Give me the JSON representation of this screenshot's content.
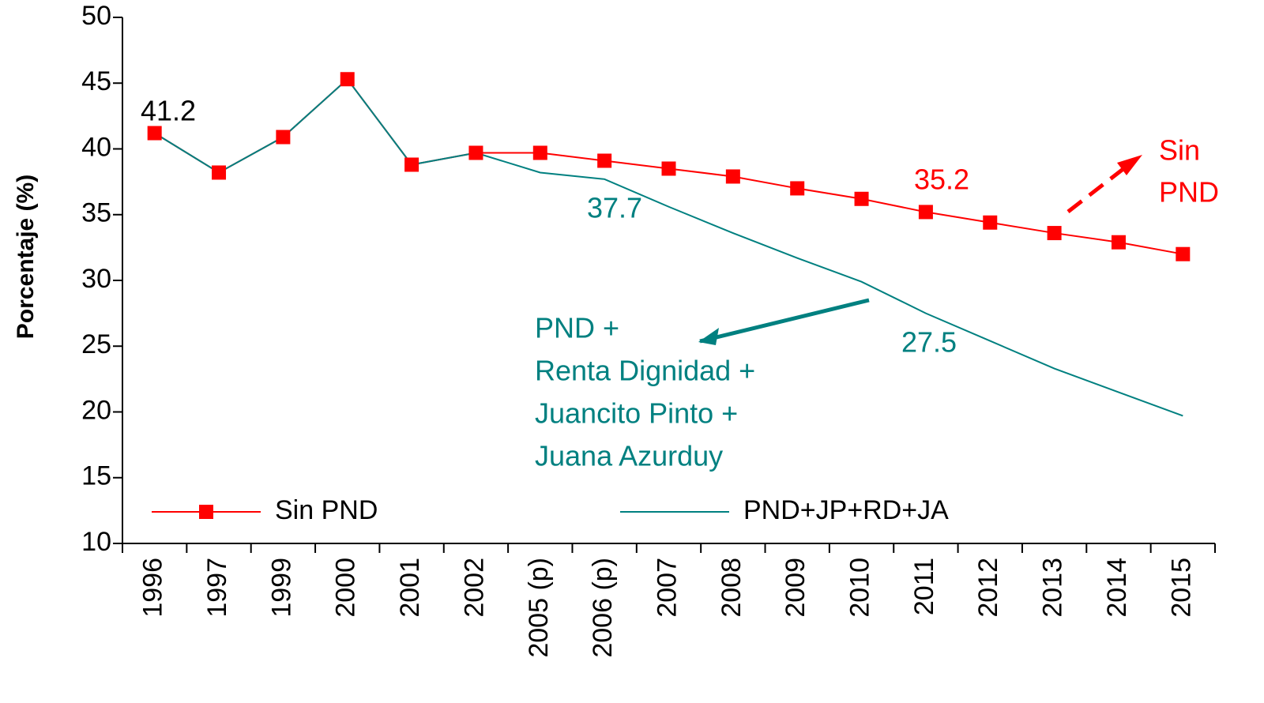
{
  "chart_data": {
    "type": "line",
    "ylabel": "Porcentaje (%)",
    "categories": [
      "1996",
      "1997",
      "1999",
      "2000",
      "2001",
      "2002",
      "2005 (p)",
      "2006 (p)",
      "2007",
      "2008",
      "2009",
      "2010",
      "2011",
      "2012",
      "2013",
      "2014",
      "2015"
    ],
    "series": [
      {
        "name": "Sin PND",
        "color": "#ff0000",
        "marker": "square",
        "values": [
          41.2,
          38.2,
          40.9,
          45.3,
          38.8,
          39.7,
          39.7,
          39.1,
          38.5,
          37.9,
          37.0,
          36.2,
          35.2,
          34.4,
          33.6,
          32.9,
          32.0
        ]
      },
      {
        "name": "PND+JP+RD+JA",
        "color": "#008080",
        "marker": "none",
        "values": [
          41.2,
          38.2,
          40.9,
          45.3,
          38.8,
          39.7,
          38.2,
          37.7,
          35.6,
          33.6,
          31.7,
          29.9,
          27.5,
          25.4,
          23.3,
          21.5,
          19.7
        ]
      }
    ],
    "ylim": [
      10,
      50
    ],
    "yticks": [
      10,
      15,
      20,
      25,
      30,
      35,
      40,
      45,
      50
    ],
    "legend": "bottom",
    "annotations": [
      {
        "lines": [
          "41.2"
        ],
        "color": "#000000"
      },
      {
        "lines": [
          "37.7"
        ],
        "color": "#008080"
      },
      {
        "lines": [
          "35.2"
        ],
        "color": "#ff0000"
      },
      {
        "lines": [
          "27.5"
        ],
        "color": "#008080"
      },
      {
        "lines": [
          "Sin",
          "PND"
        ],
        "color": "#ff0000"
      },
      {
        "lines": [
          "PND +",
          "Renta Dignidad +",
          "Juancito Pinto +",
          "Juana Azurduy"
        ],
        "color": "#008080"
      }
    ]
  }
}
